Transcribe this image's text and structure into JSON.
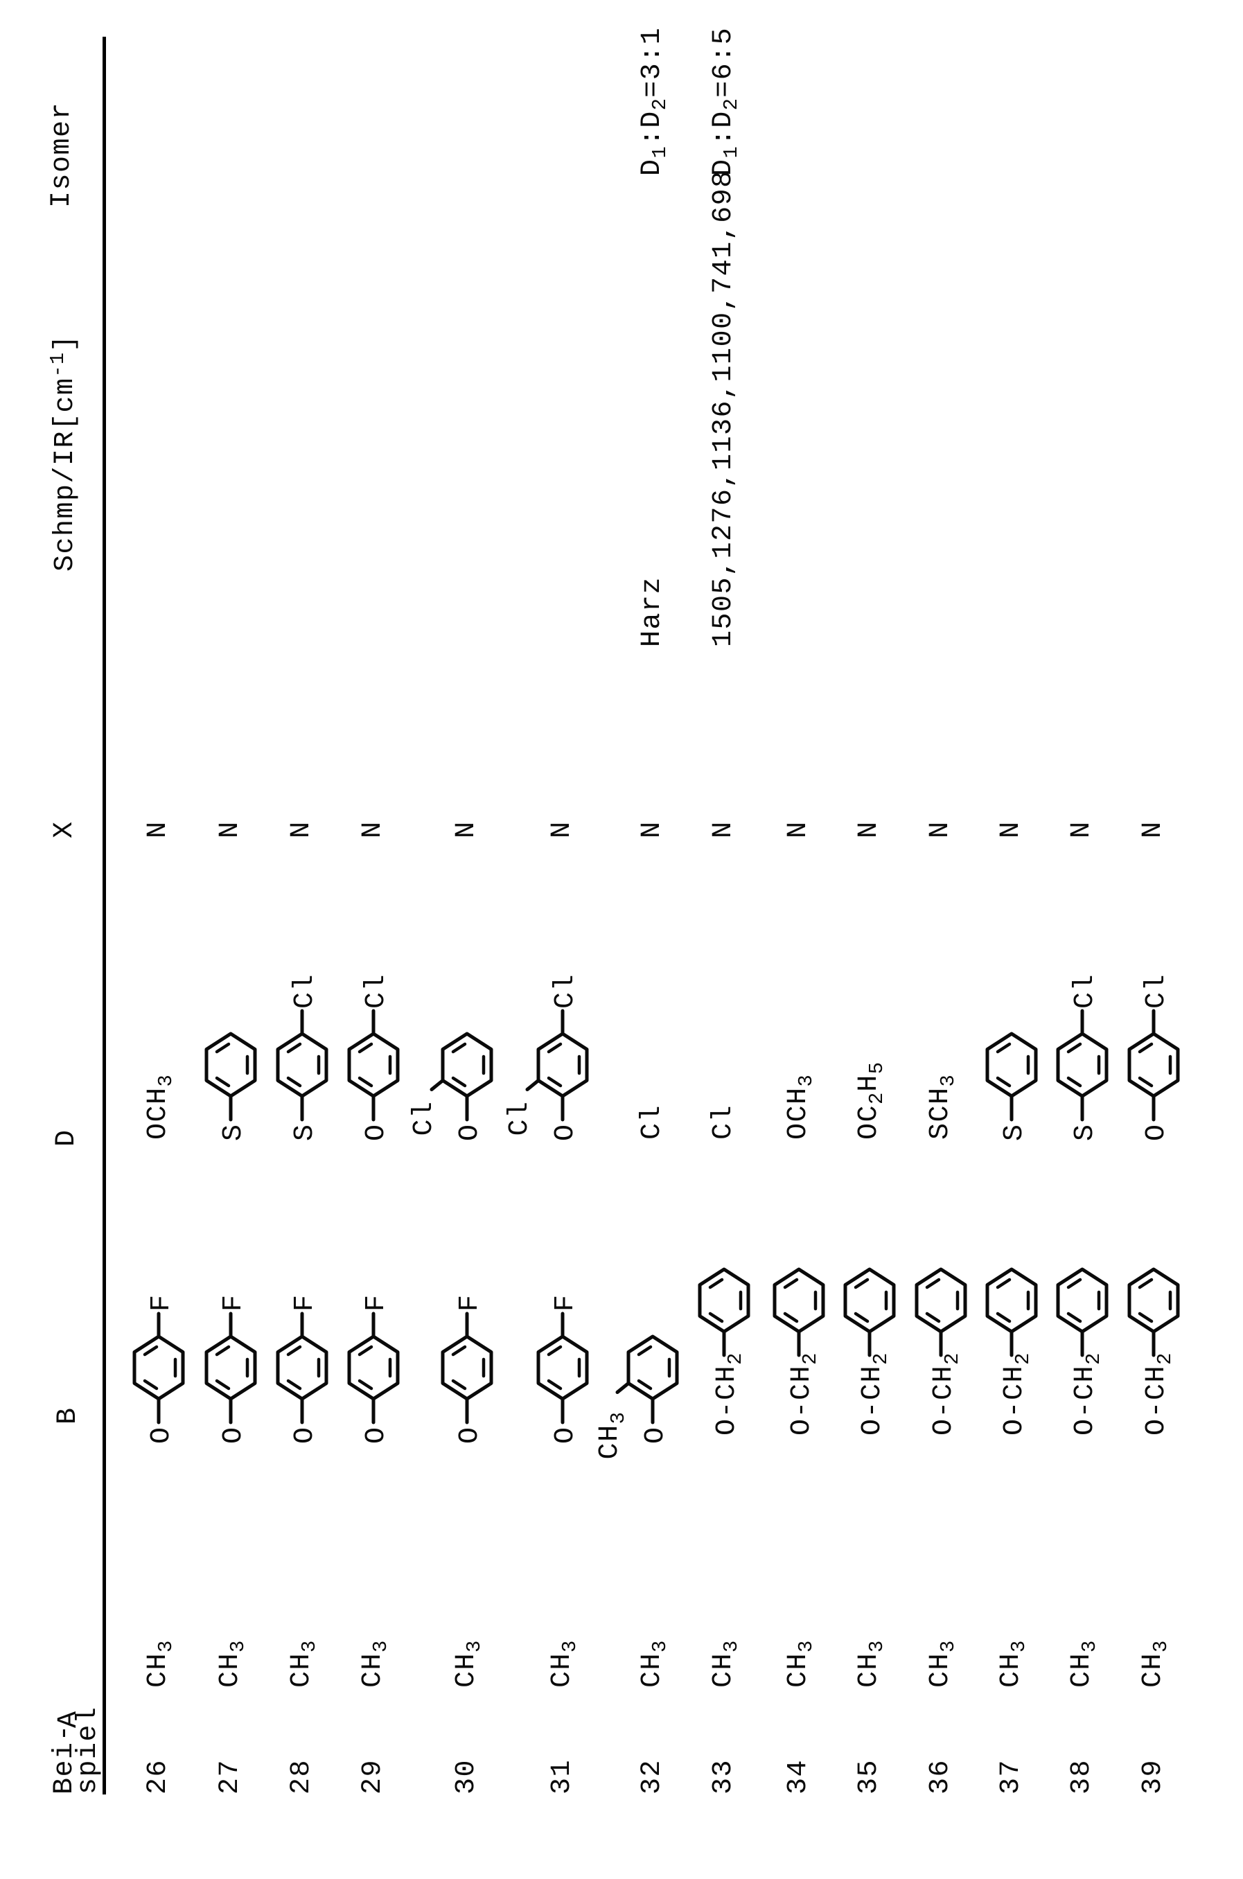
{
  "document": {
    "type": "scanned patent table page, rotated 90 degrees counter-clockwise",
    "headers": {
      "beispiel_line1": "Bei-",
      "beispiel_line2": "spiel",
      "a": "A",
      "b": "B",
      "d": "D",
      "x": "X",
      "schmp_pre": "Schmp/IR[cm",
      "schmp_sup": "-1",
      "schmp_post": "]",
      "isomer": "Isomer"
    },
    "rows": [
      {
        "beispiel": "26",
        "a": "CH3",
        "b": {
          "type": "ring",
          "left": "O",
          "para": "F"
        },
        "d": {
          "type": "formula",
          "value": "OCH3"
        },
        "x": "N",
        "schmp": "",
        "isomer": ""
      },
      {
        "beispiel": "27",
        "a": "CH3",
        "b": {
          "type": "ring",
          "left": "O",
          "para": "F"
        },
        "d": {
          "type": "ring",
          "left": "S"
        },
        "x": "N",
        "schmp": "",
        "isomer": ""
      },
      {
        "beispiel": "28",
        "a": "CH3",
        "b": {
          "type": "ring",
          "left": "O",
          "para": "F"
        },
        "d": {
          "type": "ring",
          "left": "S",
          "para": "Cl"
        },
        "x": "N",
        "schmp": "",
        "isomer": ""
      },
      {
        "beispiel": "29",
        "a": "CH3",
        "b": {
          "type": "ring",
          "left": "O",
          "para": "F"
        },
        "d": {
          "type": "ring",
          "left": "O",
          "para": "Cl"
        },
        "x": "N",
        "schmp": "",
        "isomer": ""
      },
      {
        "beispiel": "30",
        "a": "CH3",
        "b": {
          "type": "ring",
          "left": "O",
          "para": "F"
        },
        "d": {
          "type": "ring",
          "left": "O",
          "ortho": "Cl"
        },
        "x": "N",
        "schmp": "",
        "isomer": ""
      },
      {
        "beispiel": "31",
        "a": "CH3",
        "b": {
          "type": "ring",
          "left": "O",
          "para": "F"
        },
        "d": {
          "type": "ring",
          "left": "O",
          "ortho": "Cl",
          "para": "Cl"
        },
        "x": "N",
        "schmp": "",
        "isomer": ""
      },
      {
        "beispiel": "32",
        "a": "CH3",
        "b": {
          "type": "ring",
          "left": "O",
          "ortho": "CH3"
        },
        "d": {
          "type": "formula",
          "value": "Cl"
        },
        "x": "N",
        "schmp": "Harz",
        "isomer": "D1:D2=3:1"
      },
      {
        "beispiel": "33",
        "a": "CH3",
        "b": {
          "type": "benzyloxy",
          "prefix": "O-CH2"
        },
        "d": {
          "type": "formula",
          "value": "Cl"
        },
        "x": "N",
        "schmp": "1505,1276,1136,1100,741,698",
        "isomer": "D1:D2=6:5"
      },
      {
        "beispiel": "34",
        "a": "CH3",
        "b": {
          "type": "benzyloxy",
          "prefix": "O-CH2"
        },
        "d": {
          "type": "formula",
          "value": "OCH3"
        },
        "x": "N",
        "schmp": "",
        "isomer": ""
      },
      {
        "beispiel": "35",
        "a": "CH3",
        "b": {
          "type": "benzyloxy",
          "prefix": "O-CH2"
        },
        "d": {
          "type": "formula",
          "value": "OC2H5"
        },
        "x": "N",
        "schmp": "",
        "isomer": ""
      },
      {
        "beispiel": "36",
        "a": "CH3",
        "b": {
          "type": "benzyloxy",
          "prefix": "O-CH2"
        },
        "d": {
          "type": "formula",
          "value": "SCH3"
        },
        "x": "N",
        "schmp": "",
        "isomer": ""
      },
      {
        "beispiel": "37",
        "a": "CH3",
        "b": {
          "type": "benzyloxy",
          "prefix": "O-CH2"
        },
        "d": {
          "type": "ring",
          "left": "S"
        },
        "x": "N",
        "schmp": "",
        "isomer": ""
      },
      {
        "beispiel": "38",
        "a": "CH3",
        "b": {
          "type": "benzyloxy",
          "prefix": "O-CH2"
        },
        "d": {
          "type": "ring",
          "left": "S",
          "para": "Cl"
        },
        "x": "N",
        "schmp": "",
        "isomer": ""
      },
      {
        "beispiel": "39",
        "a": "CH3",
        "b": {
          "type": "benzyloxy",
          "prefix": "O-CH2"
        },
        "d": {
          "type": "ring",
          "left": "O",
          "para": "Cl"
        },
        "x": "N",
        "schmp": "",
        "isomer": ""
      }
    ]
  }
}
